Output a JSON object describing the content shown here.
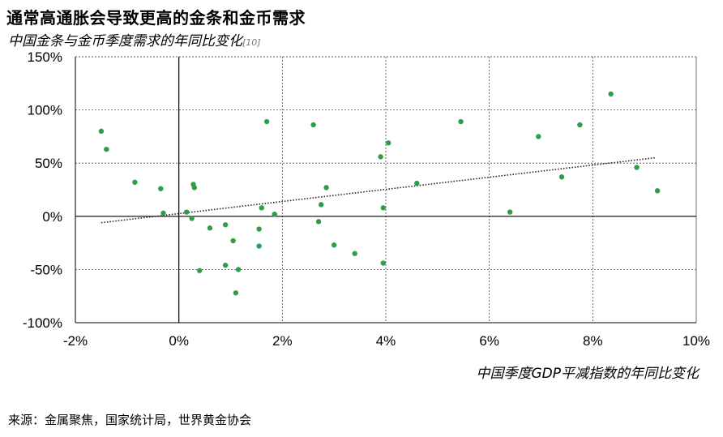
{
  "title": "通常高通胀会导致更高的金条和金币需求",
  "subtitle": "中国金条与金币季度需求的年同比变化",
  "subtitle_ref": "[10]",
  "source": "来源：金属聚焦，国家统计局，世界黄金协会",
  "chart_data": {
    "type": "scatter",
    "title": "通常高通胀会导致更高的金条和金币需求",
    "subtitle": "中国金条与金币季度需求的年同比变化",
    "xlabel": "中国季度GDP平减指数的年同比变化",
    "ylabel": "",
    "xlim": [
      -2,
      10
    ],
    "ylim": [
      -100,
      150
    ],
    "x_ticks": [
      -2,
      0,
      2,
      4,
      6,
      8,
      10
    ],
    "x_tick_labels": [
      "-2%",
      "0%",
      "2%",
      "4%",
      "6%",
      "8%",
      "10%"
    ],
    "y_ticks": [
      -100,
      -50,
      0,
      50,
      100,
      150
    ],
    "y_tick_labels": [
      "-100%",
      "-50%",
      "0%",
      "50%",
      "100%",
      "150%"
    ],
    "grid": true,
    "point_color": "#2f9e44",
    "trendline": {
      "style": "dotted",
      "x": [
        -1.5,
        9.2
      ],
      "y": [
        -6,
        55
      ]
    },
    "x": [
      -1.5,
      -1.4,
      -0.85,
      -0.35,
      -0.3,
      0.15,
      0.25,
      0.28,
      0.3,
      0.4,
      0.6,
      0.9,
      0.9,
      1.05,
      1.1,
      1.15,
      1.55,
      1.55,
      1.6,
      1.7,
      1.85,
      2.6,
      2.7,
      2.75,
      2.85,
      3.0,
      3.4,
      3.9,
      3.95,
      3.95,
      4.05,
      4.6,
      5.45,
      6.4,
      6.95,
      7.4,
      7.75,
      8.35,
      8.85,
      9.25
    ],
    "y": [
      80,
      63,
      32,
      26,
      3,
      4,
      -2,
      30,
      27,
      -51,
      -11,
      -8,
      -46,
      -23,
      -72,
      -50,
      -12,
      -28,
      8,
      89,
      2,
      86,
      -5,
      11,
      27,
      -27,
      -35,
      56,
      8,
      -44,
      69,
      31,
      89,
      4,
      75,
      37,
      86,
      115,
      46,
      24
    ]
  }
}
